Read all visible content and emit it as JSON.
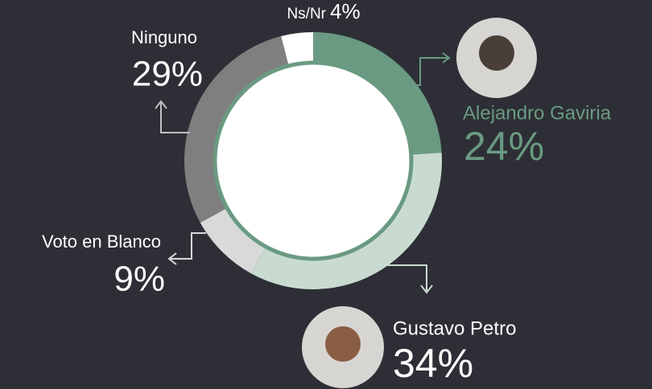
{
  "chart_data": {
    "type": "donut",
    "categories": [
      "Alejandro Gaviria",
      "Gustavo Petro",
      "Voto en Blanco",
      "Ninguno",
      "Ns/Nr"
    ],
    "values": [
      24,
      34,
      9,
      29,
      4
    ],
    "value_labels": [
      "24%",
      "34%",
      "9%",
      "29%",
      "4%"
    ],
    "colors": [
      "#6a9a82",
      "#c9dbd0",
      "#d9d9d9",
      "#7f7f7f",
      "#ffffff"
    ]
  }
}
